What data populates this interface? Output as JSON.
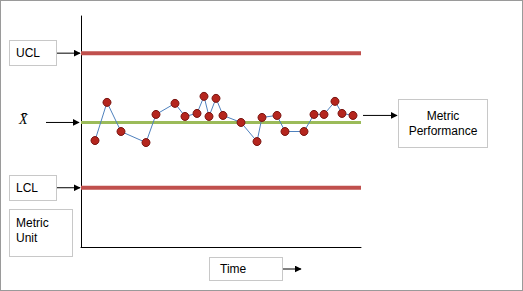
{
  "chart_data": {
    "type": "line",
    "x_label": "Time",
    "y_label": "Metric Unit",
    "xlim": [
      0,
      280
    ],
    "ylim": [
      0,
      230
    ],
    "tick_labels": false,
    "grid": false,
    "x": [
      14,
      26,
      40,
      65,
      75,
      94,
      104,
      116,
      123,
      128,
      135,
      142,
      160,
      176,
      181,
      196,
      204,
      223,
      233,
      243,
      254,
      261,
      272
    ],
    "series": [
      {
        "name": "Metric Performance",
        "color": "#4f81bd",
        "marker": "circle",
        "line_style": "solid",
        "values": [
          106,
          144,
          115,
          104,
          132,
          143,
          130,
          133,
          150,
          130,
          148,
          131,
          124,
          105,
          129,
          131,
          115,
          115,
          132,
          132,
          145,
          133,
          131
        ]
      }
    ],
    "reference_lines": [
      {
        "label": "UCL",
        "value": 193,
        "color": "#c0504d"
      },
      {
        "label": "X̄",
        "value": 124,
        "color": "#9bbb59"
      },
      {
        "label": "LCL",
        "value": 59,
        "color": "#c0504d"
      }
    ]
  }
}
